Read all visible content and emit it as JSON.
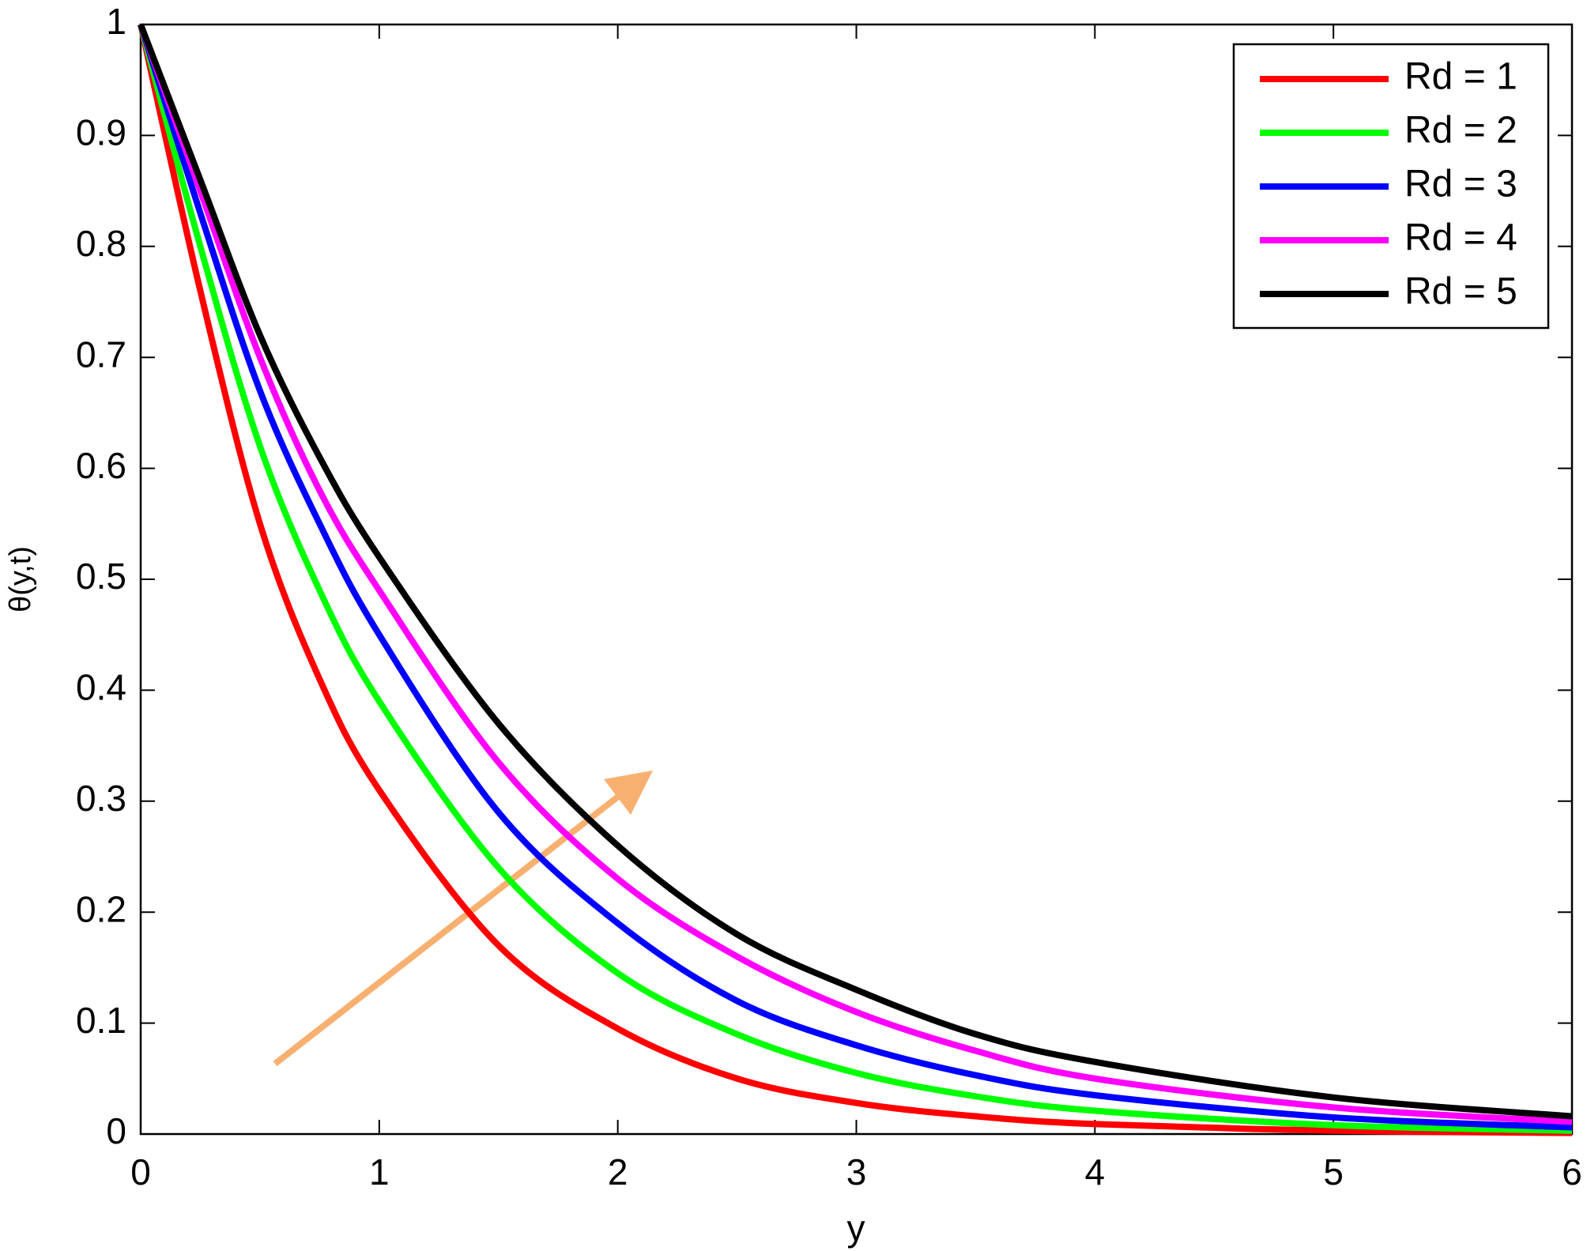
{
  "chart_data": {
    "type": "line",
    "xlabel": "y",
    "ylabel": "θ(y,t)",
    "x": [
      0,
      0.25,
      0.5,
      0.75,
      1,
      1.5,
      2,
      2.5,
      3,
      3.5,
      4,
      5,
      6
    ],
    "series": [
      {
        "name": "Rd = 1",
        "color": "#ff0000",
        "values": [
          1,
          0.76,
          0.55,
          0.41,
          0.31,
          0.17,
          0.095,
          0.05,
          0.028,
          0.016,
          0.009,
          0.003,
          0.001
        ]
      },
      {
        "name": "Rd = 2",
        "color": "#00ff00",
        "values": [
          1,
          0.8,
          0.62,
          0.49,
          0.39,
          0.24,
          0.145,
          0.09,
          0.055,
          0.034,
          0.021,
          0.008,
          0.003
        ]
      },
      {
        "name": "Rd = 3",
        "color": "#0000ff",
        "values": [
          1,
          0.83,
          0.67,
          0.55,
          0.45,
          0.29,
          0.19,
          0.12,
          0.08,
          0.053,
          0.035,
          0.015,
          0.006
        ]
      },
      {
        "name": "Rd = 4",
        "color": "#ff00ff",
        "values": [
          1,
          0.85,
          0.7,
          0.58,
          0.49,
          0.335,
          0.23,
          0.16,
          0.11,
          0.075,
          0.05,
          0.024,
          0.011
        ]
      },
      {
        "name": "Rd = 5",
        "color": "#000000",
        "values": [
          1,
          0.86,
          0.72,
          0.61,
          0.52,
          0.37,
          0.26,
          0.18,
          0.13,
          0.09,
          0.065,
          0.033,
          0.016
        ]
      }
    ],
    "xlim": [
      0,
      6
    ],
    "ylim": [
      0,
      1
    ],
    "xticks": [
      0,
      1,
      2,
      3,
      4,
      5,
      6
    ],
    "yticks": [
      0,
      0.1,
      0.2,
      0.3,
      0.4,
      0.5,
      0.6,
      0.7,
      0.8,
      0.9,
      1
    ],
    "grid": false,
    "legend": "upper right"
  }
}
